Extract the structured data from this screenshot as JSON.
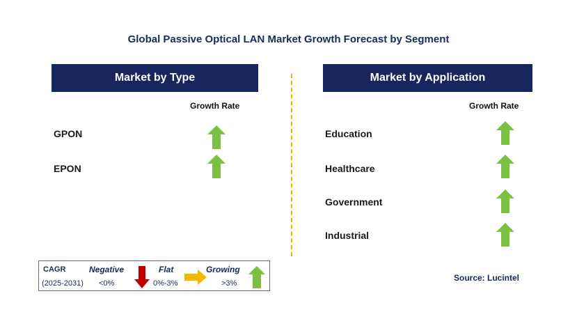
{
  "title": "Global Passive Optical LAN Market Growth Forecast by Segment",
  "left_panel": {
    "header": "Market by Type",
    "column_header": "Growth Rate",
    "rows": [
      {
        "label": "GPON",
        "trend": "growing"
      },
      {
        "label": "EPON",
        "trend": "growing"
      }
    ]
  },
  "right_panel": {
    "header": "Market by Application",
    "column_header": "Growth Rate",
    "rows": [
      {
        "label": "Education",
        "trend": "growing"
      },
      {
        "label": "Healthcare",
        "trend": "growing"
      },
      {
        "label": "Government",
        "trend": "growing"
      },
      {
        "label": "Industrial",
        "trend": "growing"
      }
    ]
  },
  "legend": {
    "cagr_label": "CAGR",
    "period": "(2025-2031)",
    "negative_label": "Negative",
    "negative_value": "<0%",
    "flat_label": "Flat",
    "flat_value": "0%-3%",
    "growing_label": "Growing",
    "growing_value": ">3%"
  },
  "source": "Source: Lucintel",
  "colors": {
    "header_bg": "#17275e",
    "growing_arrow": "#7ac143",
    "negative_arrow": "#c00000",
    "flat_arrow": "#f5b800",
    "divider": "#f2b400"
  }
}
